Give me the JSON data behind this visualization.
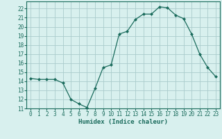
{
  "x": [
    0,
    1,
    2,
    3,
    4,
    5,
    6,
    7,
    8,
    9,
    10,
    11,
    12,
    13,
    14,
    15,
    16,
    17,
    18,
    19,
    20,
    21,
    22,
    23
  ],
  "y": [
    14.3,
    14.2,
    14.2,
    14.2,
    13.8,
    12.0,
    11.5,
    11.1,
    13.2,
    15.5,
    15.8,
    19.2,
    19.5,
    20.8,
    21.4,
    21.4,
    22.2,
    22.1,
    21.3,
    20.9,
    19.2,
    17.0,
    15.5,
    14.5
  ],
  "line_color": "#1a6b5c",
  "marker": "D",
  "marker_size": 2.0,
  "bg_color": "#d8f0ee",
  "grid_color": "#aacccc",
  "xlabel": "Humidex (Indice chaleur)",
  "ylim": [
    11,
    22.8
  ],
  "xlim": [
    -0.5,
    23.5
  ],
  "yticks": [
    11,
    12,
    13,
    14,
    15,
    16,
    17,
    18,
    19,
    20,
    21,
    22
  ],
  "xticks": [
    0,
    1,
    2,
    3,
    4,
    5,
    6,
    7,
    8,
    9,
    10,
    11,
    12,
    13,
    14,
    15,
    16,
    17,
    18,
    19,
    20,
    21,
    22,
    23
  ],
  "label_fontsize": 6.5,
  "tick_fontsize": 5.5
}
